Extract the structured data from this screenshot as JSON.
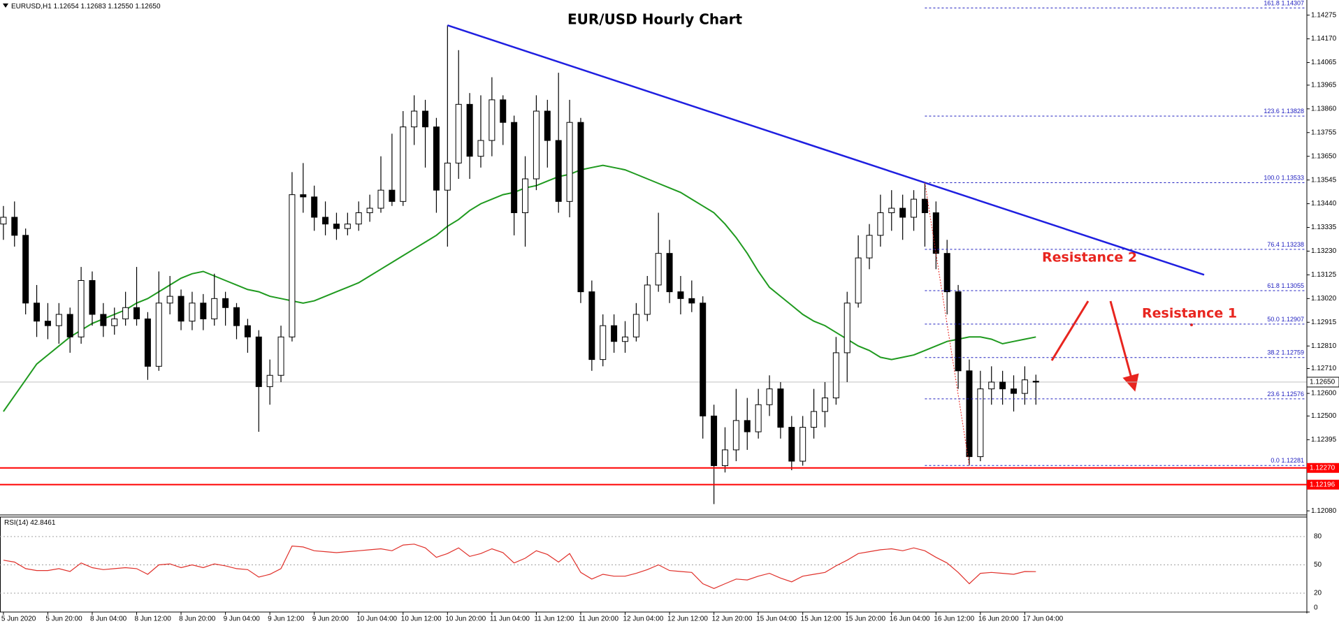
{
  "chart_data": {
    "type": "candlestick",
    "title": "EUR/USD Hourly Chart",
    "header": {
      "symbol": "EURUSD,H1",
      "quote": "1.12654 1.12683 1.12550 1.12650"
    },
    "categories": [
      "5 Jun 2020",
      null,
      null,
      null,
      "5 Jun 20:00",
      null,
      null,
      null,
      "8 Jun 04:00",
      null,
      null,
      null,
      "8 Jun 12:00",
      null,
      null,
      null,
      "8 Jun 20:00",
      null,
      null,
      null,
      "9 Jun 04:00",
      null,
      null,
      null,
      "9 Jun 12:00",
      null,
      null,
      null,
      "9 Jun 20:00",
      null,
      null,
      null,
      "10 Jun 04:00",
      null,
      null,
      null,
      "10 Jun 12:00",
      null,
      null,
      null,
      "10 Jun 20:00",
      null,
      null,
      null,
      "11 Jun 04:00",
      null,
      null,
      null,
      "11 Jun 12:00",
      null,
      null,
      null,
      "11 Jun 20:00",
      null,
      null,
      null,
      "12 Jun 04:00",
      null,
      null,
      null,
      "12 Jun 12:00",
      null,
      null,
      null,
      "12 Jun 20:00",
      null,
      null,
      null,
      "15 Jun 04:00",
      null,
      null,
      null,
      "15 Jun 12:00",
      null,
      null,
      null,
      "15 Jun 20:00",
      null,
      null,
      null,
      "16 Jun 04:00",
      null,
      null,
      null,
      "16 Jun 12:00",
      null,
      null,
      null,
      "16 Jun 20:00",
      null,
      null,
      null,
      "17 Jun 04:00",
      null
    ],
    "open": [
      1.1335,
      1.1338,
      1.133,
      1.13,
      1.1292,
      1.129,
      1.1295,
      1.1285,
      1.131,
      1.1295,
      1.129,
      1.1293,
      1.1298,
      1.1293,
      1.1272,
      1.13,
      1.1303,
      1.1292,
      1.13,
      1.1293,
      1.1302,
      1.1298,
      1.129,
      1.1285,
      1.1263,
      1.1268,
      1.1285,
      1.1348,
      1.1347,
      1.1338,
      1.1335,
      1.1333,
      1.1335,
      1.134,
      1.1342,
      1.135,
      1.1345,
      1.1378,
      1.1385,
      1.1378,
      1.135,
      1.1362,
      1.1388,
      1.1365,
      1.1372,
      1.139,
      1.138,
      1.134,
      1.1355,
      1.1385,
      1.1372,
      1.1345,
      1.138,
      1.1305,
      1.1275,
      1.129,
      1.1283,
      1.1285,
      1.1295,
      1.1308,
      1.1322,
      1.1305,
      1.1302,
      1.13,
      1.125,
      1.1228,
      1.1235,
      1.1248,
      1.1243,
      1.1255,
      1.1262,
      1.1245,
      1.123,
      1.1245,
      1.1252,
      1.1258,
      1.1278,
      1.13,
      1.132,
      1.133,
      1.134,
      1.1342,
      1.1338,
      1.1346,
      1.134,
      1.1322,
      1.1305,
      1.127,
      1.1232,
      1.1262,
      1.1265,
      1.1262,
      1.126,
      1.12654
    ],
    "high": [
      1.1343,
      1.1345,
      1.1333,
      1.1308,
      1.13,
      1.13,
      1.1298,
      1.1316,
      1.1314,
      1.13,
      1.1298,
      1.1305,
      1.1316,
      1.1296,
      1.1314,
      1.1312,
      1.1306,
      1.1305,
      1.1304,
      1.1313,
      1.1305,
      1.13,
      1.1293,
      1.1288,
      1.1275,
      1.129,
      1.1358,
      1.1362,
      1.1352,
      1.1345,
      1.134,
      1.134,
      1.1345,
      1.1348,
      1.1365,
      1.1375,
      1.1385,
      1.1392,
      1.139,
      1.1382,
      1.1423,
      1.1412,
      1.1393,
      1.1392,
      1.14,
      1.1392,
      1.1383,
      1.1365,
      1.1392,
      1.139,
      1.1402,
      1.139,
      1.1382,
      1.131,
      1.1295,
      1.1295,
      1.1292,
      1.13,
      1.1312,
      1.134,
      1.1328,
      1.1312,
      1.131,
      1.1303,
      1.1255,
      1.1245,
      1.1262,
      1.1258,
      1.1262,
      1.1268,
      1.1265,
      1.125,
      1.125,
      1.1262,
      1.1265,
      1.1285,
      1.1305,
      1.133,
      1.1335,
      1.1348,
      1.135,
      1.1348,
      1.135,
      1.13533,
      1.1345,
      1.1328,
      1.1308,
      1.1275,
      1.127,
      1.1272,
      1.127,
      1.1268,
      1.1272,
      1.12683
    ],
    "low": [
      1.1328,
      1.1325,
      1.1295,
      1.1285,
      1.1284,
      1.1282,
      1.1278,
      1.1282,
      1.129,
      1.1285,
      1.1286,
      1.129,
      1.129,
      1.1266,
      1.127,
      1.1295,
      1.1288,
      1.1288,
      1.1288,
      1.129,
      1.129,
      1.1284,
      1.1278,
      1.1243,
      1.1255,
      1.1265,
      1.1283,
      1.134,
      1.1332,
      1.133,
      1.1328,
      1.133,
      1.1332,
      1.1336,
      1.134,
      1.1343,
      1.1343,
      1.137,
      1.136,
      1.134,
      1.1325,
      1.1355,
      1.1355,
      1.136,
      1.1365,
      1.137,
      1.133,
      1.1325,
      1.135,
      1.136,
      1.134,
      1.1338,
      1.13,
      1.127,
      1.1272,
      1.1278,
      1.1278,
      1.1283,
      1.1292,
      1.1305,
      1.13,
      1.1295,
      1.1296,
      1.124,
      1.1211,
      1.1225,
      1.123,
      1.1235,
      1.124,
      1.125,
      1.124,
      1.1226,
      1.1228,
      1.124,
      1.1245,
      1.1255,
      1.1265,
      1.1298,
      1.1315,
      1.1325,
      1.1332,
      1.1328,
      1.1332,
      1.1325,
      1.1315,
      1.1295,
      1.1262,
      1.12281,
      1.123,
      1.1255,
      1.1255,
      1.1252,
      1.1255,
      1.1255
    ],
    "close": [
      1.1338,
      1.133,
      1.13,
      1.1292,
      1.129,
      1.1295,
      1.1285,
      1.131,
      1.1295,
      1.129,
      1.1293,
      1.1298,
      1.1293,
      1.1272,
      1.13,
      1.1303,
      1.1292,
      1.13,
      1.1293,
      1.1302,
      1.1298,
      1.129,
      1.1285,
      1.1263,
      1.1268,
      1.1285,
      1.1348,
      1.1347,
      1.1338,
      1.1335,
      1.1333,
      1.1335,
      1.134,
      1.1342,
      1.135,
      1.1345,
      1.1378,
      1.1385,
      1.1378,
      1.135,
      1.1362,
      1.1388,
      1.1365,
      1.1372,
      1.139,
      1.138,
      1.134,
      1.1355,
      1.1385,
      1.1372,
      1.1345,
      1.138,
      1.1305,
      1.1275,
      1.129,
      1.1283,
      1.1285,
      1.1295,
      1.1308,
      1.1322,
      1.1305,
      1.1302,
      1.13,
      1.125,
      1.1228,
      1.1235,
      1.1248,
      1.1243,
      1.1255,
      1.1262,
      1.1245,
      1.123,
      1.1245,
      1.1252,
      1.1258,
      1.1278,
      1.13,
      1.132,
      1.133,
      1.134,
      1.1342,
      1.1338,
      1.1346,
      1.134,
      1.1322,
      1.1305,
      1.127,
      1.1232,
      1.1262,
      1.1265,
      1.1262,
      1.126,
      1.1266,
      1.1265
    ],
    "up_color": "#ffffff",
    "down_color": "#000000",
    "wick_color": "#000000",
    "ma": {
      "color": "#1f9a1f",
      "values": [
        1.1252,
        1.1259,
        1.1266,
        1.1273,
        1.1277,
        1.1281,
        1.1285,
        1.1288,
        1.1291,
        1.1293,
        1.1295,
        1.1297,
        1.13,
        1.1302,
        1.1305,
        1.1308,
        1.1311,
        1.1313,
        1.1314,
        1.1312,
        1.131,
        1.1308,
        1.1306,
        1.1305,
        1.1303,
        1.1302,
        1.1301,
        1.13,
        1.1301,
        1.1303,
        1.1305,
        1.1307,
        1.1309,
        1.1312,
        1.1315,
        1.1318,
        1.1321,
        1.1324,
        1.1327,
        1.133,
        1.1334,
        1.1337,
        1.1341,
        1.1344,
        1.1346,
        1.1348,
        1.1349,
        1.1351,
        1.1352,
        1.1354,
        1.1356,
        1.1357,
        1.1359,
        1.136,
        1.1361,
        1.136,
        1.1359,
        1.1357,
        1.1355,
        1.1353,
        1.1351,
        1.1349,
        1.1346,
        1.1343,
        1.134,
        1.1335,
        1.1329,
        1.1322,
        1.1314,
        1.1307,
        1.1303,
        1.1299,
        1.1295,
        1.1292,
        1.129,
        1.1287,
        1.1284,
        1.1281,
        1.1279,
        1.1276,
        1.1275,
        1.1276,
        1.1277,
        1.1279,
        1.1281,
        1.1283,
        1.1284,
        1.1285,
        1.1285,
        1.1284,
        1.1282,
        1.1283,
        1.1284,
        1.1285
      ]
    },
    "trendline_color": "#1f1fe0",
    "ylim": [
      1.12062,
      1.14342
    ],
    "yticks": [
      1.14275,
      {
        "value": 1.1417,
        "label": "1.14170"
      },
      1.14065,
      1.13965,
      {
        "value": 1.1386,
        "label": "1.13860"
      },
      1.13755,
      {
        "value": 1.1365,
        "label": "1.13650"
      },
      1.13545,
      {
        "value": 1.1344,
        "label": "1.13440"
      },
      1.13335,
      {
        "value": 1.1323,
        "label": "1.13230"
      },
      1.13125,
      {
        "value": 1.1302,
        "label": "1.13020"
      },
      1.12915,
      {
        "value": 1.1281,
        "label": "1.12810"
      },
      {
        "value": 1.1271,
        "label": "1.12710"
      },
      {
        "value": 1.126,
        "label": "1.12600"
      },
      {
        "value": 1.125,
        "label": "1.12500"
      },
      1.12395,
      {
        "value": 1.1208,
        "label": "1.12080"
      }
    ],
    "fib_color": "#2020c0",
    "fib_levels": [
      {
        "ratio": "161.8",
        "price": 1.14307
      },
      {
        "ratio": "123.6",
        "price": 1.13828
      },
      {
        "ratio": "100.0",
        "price": 1.13533
      },
      {
        "ratio": "76.4",
        "price": 1.13238
      },
      {
        "ratio": "61.8",
        "price": 1.13055
      },
      {
        "ratio": "50.0",
        "price": 1.12907
      },
      {
        "ratio": "38.2",
        "price": 1.12759
      },
      {
        "ratio": "23.6",
        "price": 1.12576
      },
      {
        "ratio": "0.0",
        "price": 1.12281
      }
    ],
    "price_lines": [
      {
        "value": 1.1227,
        "label": "1.12270",
        "color": "#ff0000"
      },
      {
        "value": 1.12196,
        "color": "#ff0000"
      }
    ],
    "current_price": {
      "value": 1.1265,
      "label": "1.12650"
    },
    "annotations": [
      "Resistance 2",
      "Resistance 1"
    ],
    "rsi": {
      "title": "RSI(14)",
      "color": "#e0302a",
      "ylim": [
        0,
        100
      ],
      "yticks": [
        0,
        20,
        50,
        80
      ],
      "values": [
        55,
        53,
        46,
        44,
        44,
        46,
        43,
        52,
        47,
        45,
        46,
        47,
        46,
        40,
        50,
        51,
        47,
        50,
        47,
        51,
        49,
        46,
        45,
        37,
        40,
        46,
        70,
        69,
        65,
        64,
        63,
        64,
        65,
        66,
        67,
        65,
        71,
        72,
        68,
        58,
        62,
        68,
        59,
        62,
        67,
        63,
        52,
        57,
        65,
        61,
        53,
        62,
        42,
        35,
        40,
        38,
        38,
        41,
        45,
        50,
        44,
        43,
        42,
        30,
        25,
        30,
        35,
        34,
        38,
        41,
        36,
        32,
        38,
        40,
        42,
        49,
        55,
        62,
        64,
        66,
        67,
        65,
        68,
        65,
        58,
        52,
        42,
        30,
        41,
        42,
        41,
        40,
        43,
        42.8461
      ]
    }
  }
}
